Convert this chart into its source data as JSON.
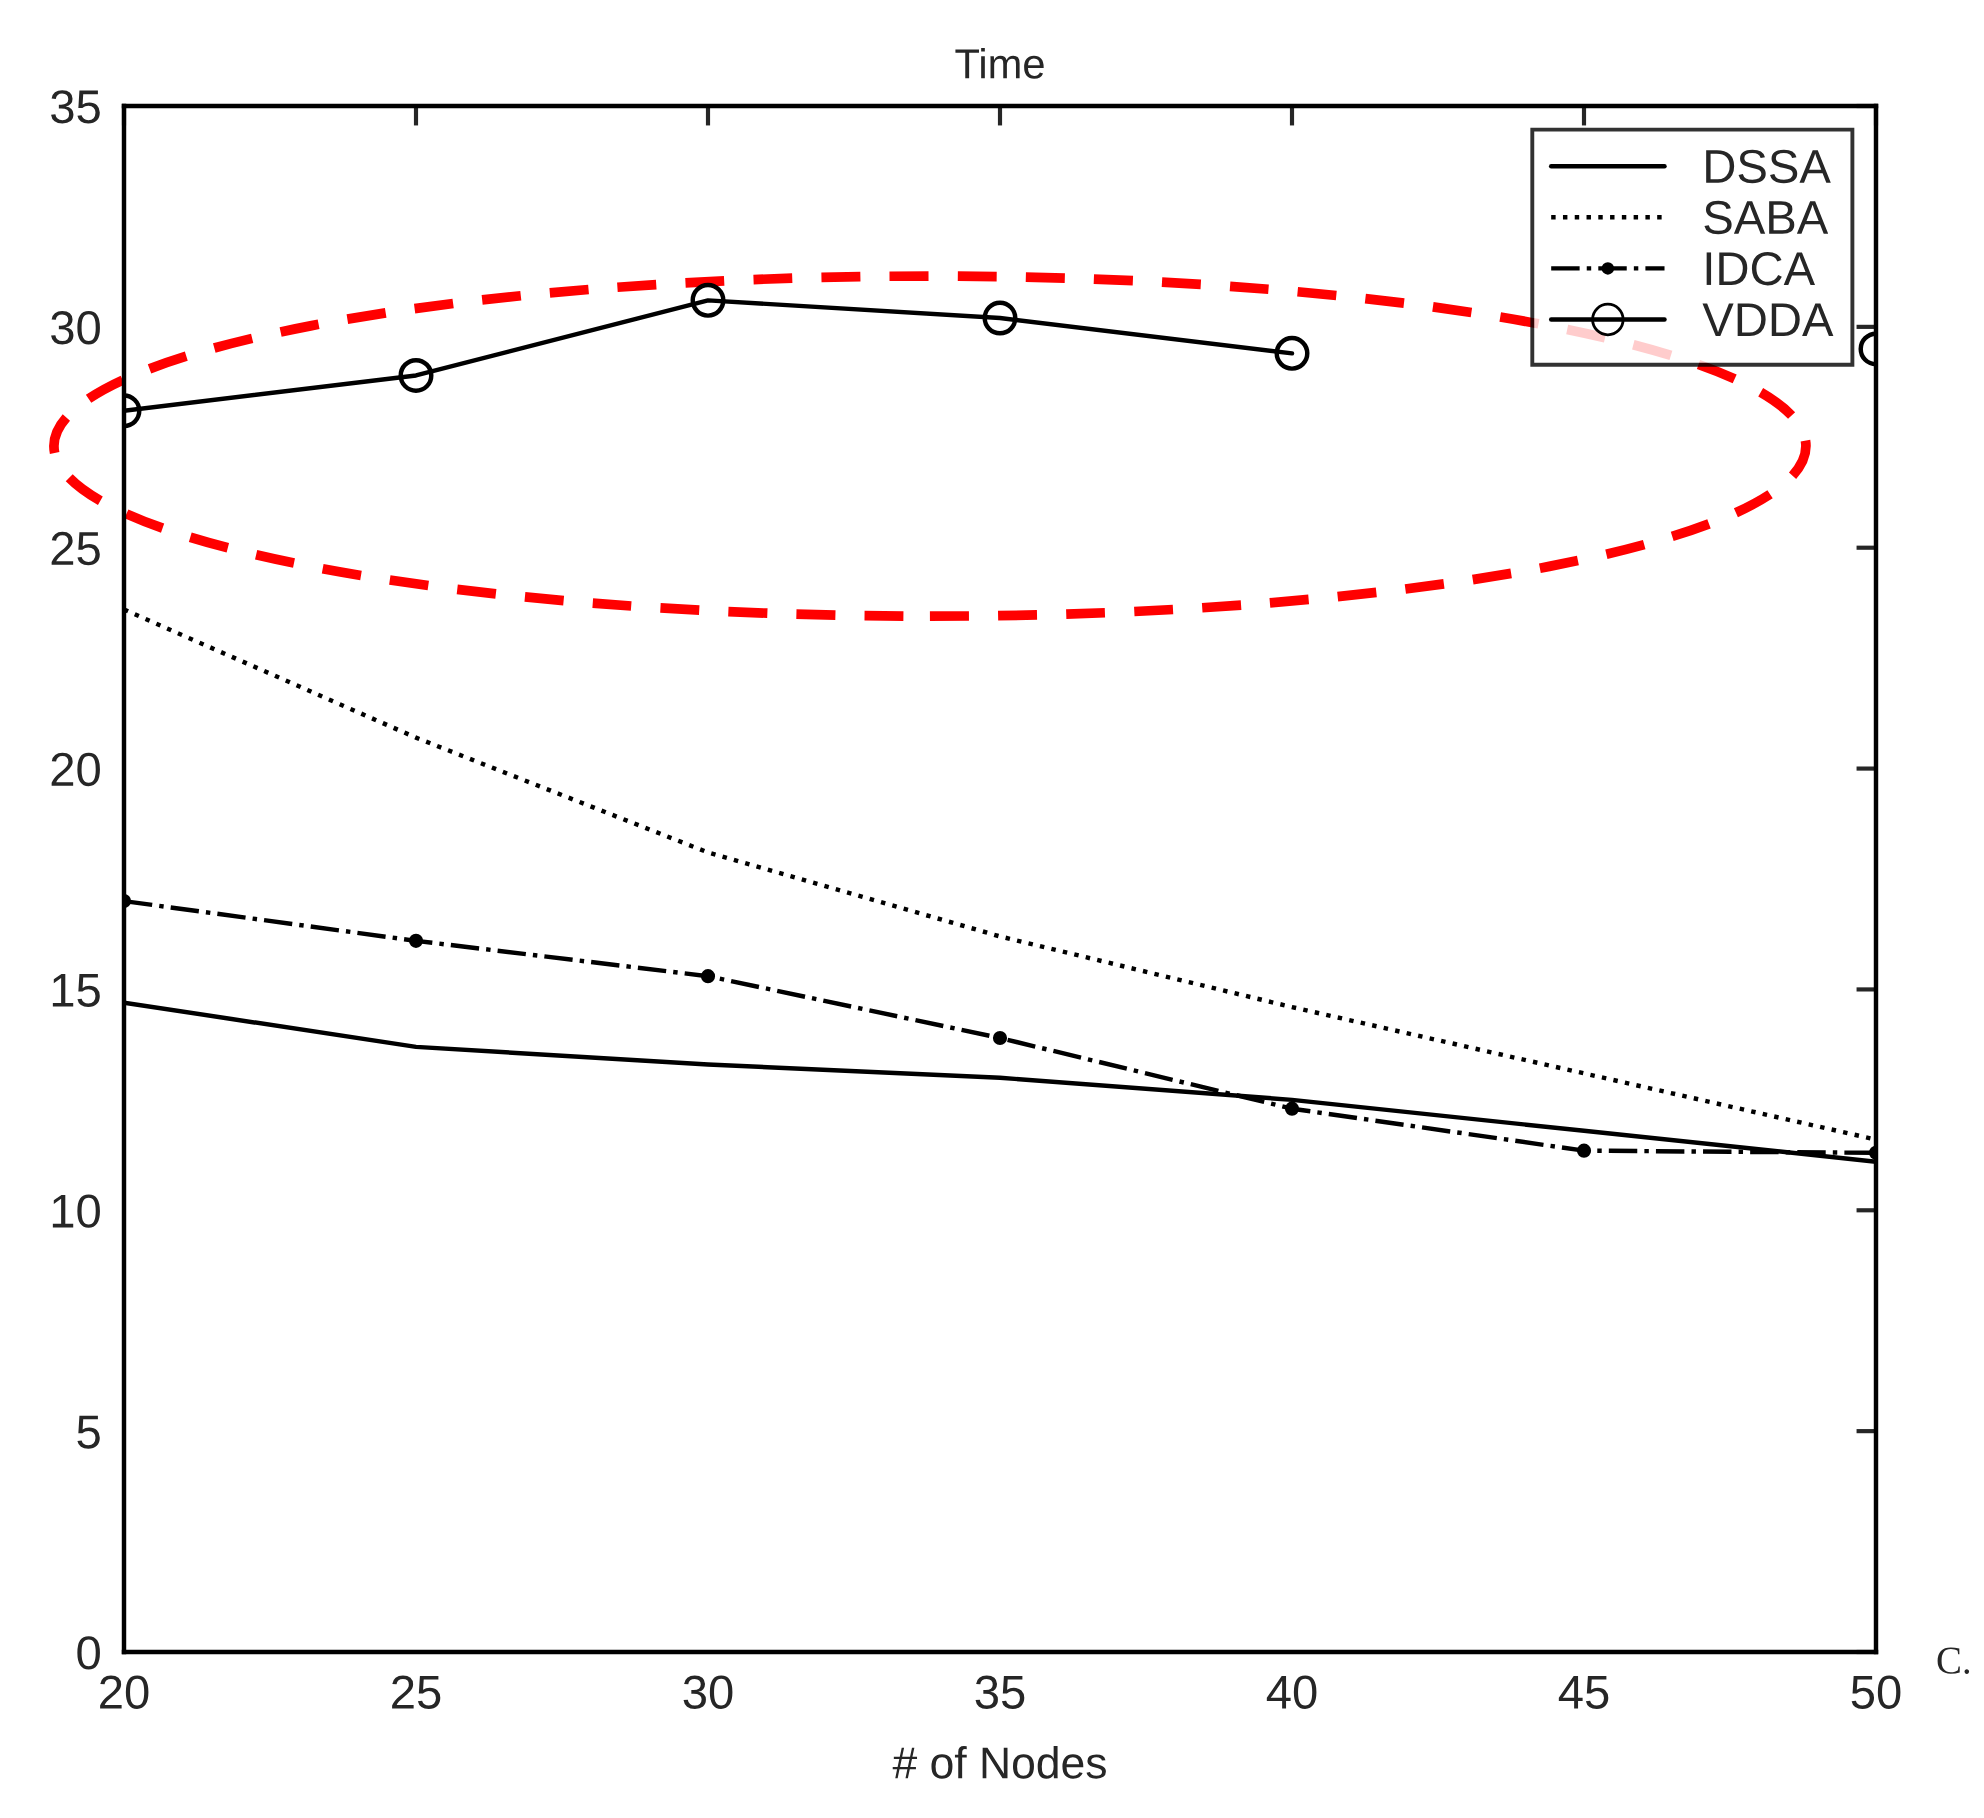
{
  "chart_data": {
    "type": "line",
    "title": "Time",
    "xlabel": "# of Nodes",
    "x": [
      20,
      25,
      30,
      35,
      40,
      45,
      50
    ],
    "series": [
      {
        "name": "DSSA",
        "color": "#000000",
        "line_style": "solid",
        "marker": "none",
        "values": [
          14.7,
          13.7,
          13.3,
          13.0,
          12.5,
          11.8,
          11.1
        ]
      },
      {
        "name": "SABA",
        "color": "#000000",
        "line_style": "dotted",
        "marker": "none",
        "values": [
          23.6,
          20.7,
          18.1,
          16.2,
          14.6,
          13.1,
          11.6
        ]
      },
      {
        "name": "IDCA",
        "color": "#000000",
        "line_style": "dashdot",
        "marker": "dot",
        "values": [
          17.0,
          16.1,
          15.3,
          13.9,
          12.3,
          11.35,
          11.3
        ]
      },
      {
        "name": "VDDA",
        "color": "#000000",
        "line_style": "solid",
        "marker": "circle",
        "values": [
          28.1,
          28.9,
          30.6,
          30.2,
          29.4,
          null,
          29.5
        ]
      }
    ],
    "xlim": [
      20,
      50
    ],
    "xticks": [
      20,
      25,
      30,
      35,
      40,
      45,
      50
    ],
    "ylim": [
      0,
      35
    ],
    "yticks": [
      0,
      5,
      10,
      15,
      20,
      25,
      30,
      35
    ],
    "grid": false,
    "legend": "top right",
    "annotations": [
      "C."
    ]
  }
}
